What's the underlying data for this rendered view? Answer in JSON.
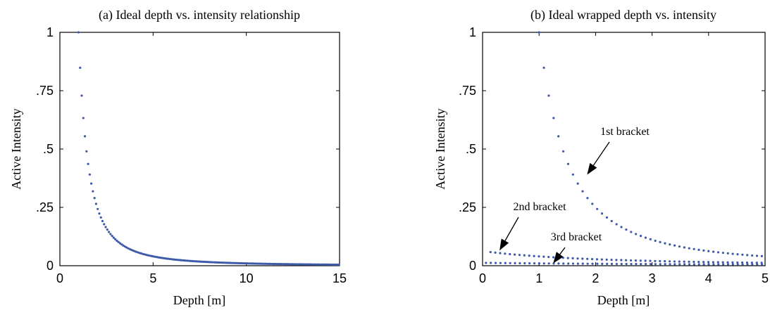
{
  "chart_data": [
    {
      "type": "scatter",
      "title": "(a) Ideal depth vs. intensity relationship",
      "xlabel": "Depth [m]",
      "ylabel": "Active Intensity",
      "xlim": [
        0,
        15
      ],
      "ylim": [
        0,
        1
      ],
      "x_ticks": [
        0,
        5,
        10,
        15
      ],
      "x_tick_labels": [
        "0",
        "5",
        "10",
        "15"
      ],
      "y_ticks": [
        0,
        0.25,
        0.5,
        0.75,
        1
      ],
      "y_tick_labels": [
        "0",
        ".25",
        ".5",
        ".75",
        "1"
      ],
      "grid": false,
      "color": "#3c5aa8",
      "series": [
        {
          "relation": "intensity = 1 / depth^2",
          "x_range": [
            1,
            15
          ],
          "x_step": 0.0857,
          "point_count": 164
        }
      ]
    },
    {
      "type": "scatter",
      "title": "(b) Ideal wrapped depth vs. intensity",
      "xlabel": "Depth [m]",
      "ylabel": "Active Intensity",
      "xlim": [
        0,
        5
      ],
      "ylim": [
        0,
        1
      ],
      "x_ticks": [
        0,
        1,
        2,
        3,
        4,
        5
      ],
      "x_tick_labels": [
        "0",
        "1",
        "2",
        "3",
        "4",
        "5"
      ],
      "y_ticks": [
        0,
        0.25,
        0.5,
        0.75,
        1
      ],
      "y_tick_labels": [
        "0",
        ".25",
        ".5",
        ".75",
        "1"
      ],
      "grid": false,
      "color": "#3c5aa8",
      "series": [
        {
          "relation": "intensity = 1 / depth^2",
          "x_range": [
            1,
            5
          ],
          "x_step": 0.0857
        },
        {
          "relation": "intensity = 1 / (depth + 4)^2",
          "x_range": [
            0.14,
            5
          ],
          "x_step": 0.0857
        },
        {
          "relation": "intensity = 1 / (depth + 9)^2",
          "x_range": [
            0.06,
            5
          ],
          "x_step": 0.0857
        }
      ],
      "annotations": [
        {
          "text": "1st bracket",
          "points_to": [
            1.85,
            0.39
          ]
        },
        {
          "text": "2nd bracket",
          "points_to": [
            0.3,
            0.065
          ]
        },
        {
          "text": "3rd bracket",
          "points_to": [
            1.25,
            0.01
          ]
        }
      ]
    }
  ]
}
